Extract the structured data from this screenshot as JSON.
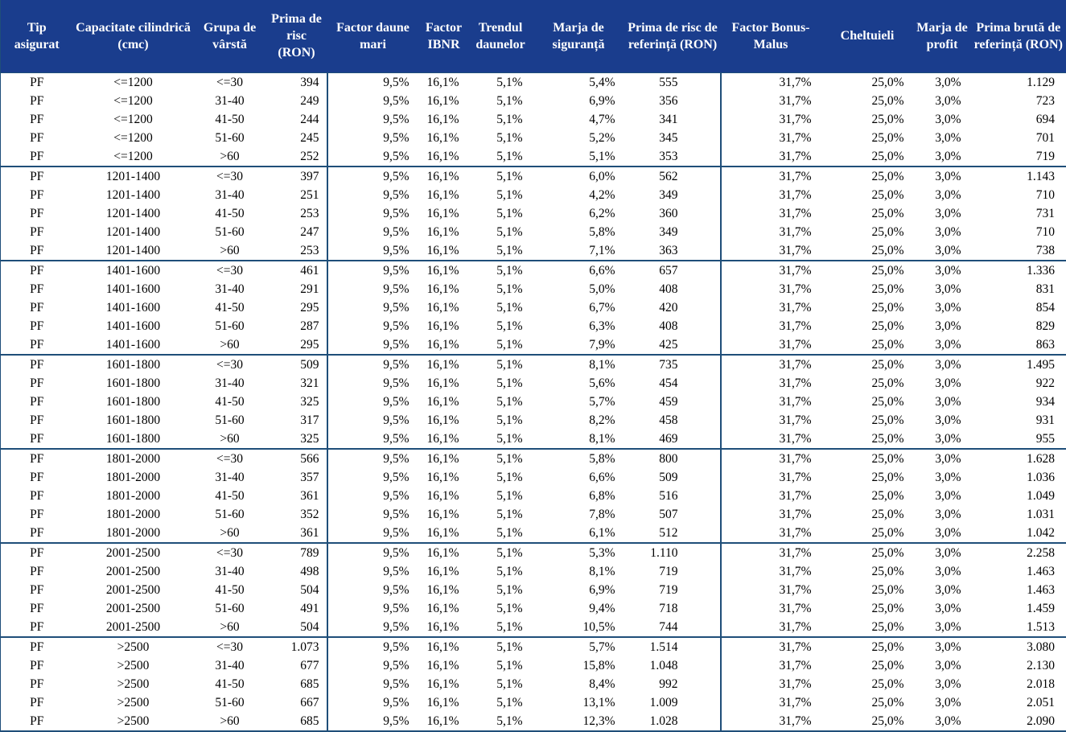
{
  "colors": {
    "header_background": "#1A3D8D",
    "header_text": "#FFFFFF",
    "grid_border": "#1F4E79",
    "body_text": "#000000",
    "body_background": "#FFFFFF"
  },
  "table": {
    "columns": [
      "Tip asigurat",
      "Capacitate cilindrică (cmc)",
      "Grupa de vârstă",
      "Prima de risc (RON)",
      "Factor daune mari",
      "Factor IBNR",
      "Trendul daunelor",
      "Marja de siguranță",
      "Prima de risc de referință (RON)",
      "Factor Bonus-Malus",
      "Cheltuieli",
      "Marja de profit",
      "Prima brută de referință (RON)"
    ],
    "column_keys": [
      "tip-asigurat",
      "capacitate-cilindrica",
      "grupa-varsta",
      "prima-risc",
      "factor-daune-mari",
      "factor-ibnr",
      "trendul-daunelor",
      "marja-siguranta",
      "prima-risc-referinta",
      "factor-bonus-malus",
      "cheltuieli",
      "marja-profit",
      "prima-bruta-referinta"
    ],
    "groups": [
      {
        "capacity": "<=1200",
        "rows": [
          [
            "PF",
            "<=1200",
            "<=30",
            "394",
            "9,5%",
            "16,1%",
            "5,1%",
            "5,4%",
            "555",
            "31,7%",
            "25,0%",
            "3,0%",
            "1.129"
          ],
          [
            "PF",
            "<=1200",
            "31-40",
            "249",
            "9,5%",
            "16,1%",
            "5,1%",
            "6,9%",
            "356",
            "31,7%",
            "25,0%",
            "3,0%",
            "723"
          ],
          [
            "PF",
            "<=1200",
            "41-50",
            "244",
            "9,5%",
            "16,1%",
            "5,1%",
            "4,7%",
            "341",
            "31,7%",
            "25,0%",
            "3,0%",
            "694"
          ],
          [
            "PF",
            "<=1200",
            "51-60",
            "245",
            "9,5%",
            "16,1%",
            "5,1%",
            "5,2%",
            "345",
            "31,7%",
            "25,0%",
            "3,0%",
            "701"
          ],
          [
            "PF",
            "<=1200",
            ">60",
            "252",
            "9,5%",
            "16,1%",
            "5,1%",
            "5,1%",
            "353",
            "31,7%",
            "25,0%",
            "3,0%",
            "719"
          ]
        ]
      },
      {
        "capacity": "1201-1400",
        "rows": [
          [
            "PF",
            "1201-1400",
            "<=30",
            "397",
            "9,5%",
            "16,1%",
            "5,1%",
            "6,0%",
            "562",
            "31,7%",
            "25,0%",
            "3,0%",
            "1.143"
          ],
          [
            "PF",
            "1201-1400",
            "31-40",
            "251",
            "9,5%",
            "16,1%",
            "5,1%",
            "4,2%",
            "349",
            "31,7%",
            "25,0%",
            "3,0%",
            "710"
          ],
          [
            "PF",
            "1201-1400",
            "41-50",
            "253",
            "9,5%",
            "16,1%",
            "5,1%",
            "6,2%",
            "360",
            "31,7%",
            "25,0%",
            "3,0%",
            "731"
          ],
          [
            "PF",
            "1201-1400",
            "51-60",
            "247",
            "9,5%",
            "16,1%",
            "5,1%",
            "5,8%",
            "349",
            "31,7%",
            "25,0%",
            "3,0%",
            "710"
          ],
          [
            "PF",
            "1201-1400",
            ">60",
            "253",
            "9,5%",
            "16,1%",
            "5,1%",
            "7,1%",
            "363",
            "31,7%",
            "25,0%",
            "3,0%",
            "738"
          ]
        ]
      },
      {
        "capacity": "1401-1600",
        "rows": [
          [
            "PF",
            "1401-1600",
            "<=30",
            "461",
            "9,5%",
            "16,1%",
            "5,1%",
            "6,6%",
            "657",
            "31,7%",
            "25,0%",
            "3,0%",
            "1.336"
          ],
          [
            "PF",
            "1401-1600",
            "31-40",
            "291",
            "9,5%",
            "16,1%",
            "5,1%",
            "5,0%",
            "408",
            "31,7%",
            "25,0%",
            "3,0%",
            "831"
          ],
          [
            "PF",
            "1401-1600",
            "41-50",
            "295",
            "9,5%",
            "16,1%",
            "5,1%",
            "6,7%",
            "420",
            "31,7%",
            "25,0%",
            "3,0%",
            "854"
          ],
          [
            "PF",
            "1401-1600",
            "51-60",
            "287",
            "9,5%",
            "16,1%",
            "5,1%",
            "6,3%",
            "408",
            "31,7%",
            "25,0%",
            "3,0%",
            "829"
          ],
          [
            "PF",
            "1401-1600",
            ">60",
            "295",
            "9,5%",
            "16,1%",
            "5,1%",
            "7,9%",
            "425",
            "31,7%",
            "25,0%",
            "3,0%",
            "863"
          ]
        ]
      },
      {
        "capacity": "1601-1800",
        "rows": [
          [
            "PF",
            "1601-1800",
            "<=30",
            "509",
            "9,5%",
            "16,1%",
            "5,1%",
            "8,1%",
            "735",
            "31,7%",
            "25,0%",
            "3,0%",
            "1.495"
          ],
          [
            "PF",
            "1601-1800",
            "31-40",
            "321",
            "9,5%",
            "16,1%",
            "5,1%",
            "5,6%",
            "454",
            "31,7%",
            "25,0%",
            "3,0%",
            "922"
          ],
          [
            "PF",
            "1601-1800",
            "41-50",
            "325",
            "9,5%",
            "16,1%",
            "5,1%",
            "5,7%",
            "459",
            "31,7%",
            "25,0%",
            "3,0%",
            "934"
          ],
          [
            "PF",
            "1601-1800",
            "51-60",
            "317",
            "9,5%",
            "16,1%",
            "5,1%",
            "8,2%",
            "458",
            "31,7%",
            "25,0%",
            "3,0%",
            "931"
          ],
          [
            "PF",
            "1601-1800",
            ">60",
            "325",
            "9,5%",
            "16,1%",
            "5,1%",
            "8,1%",
            "469",
            "31,7%",
            "25,0%",
            "3,0%",
            "955"
          ]
        ]
      },
      {
        "capacity": "1801-2000",
        "rows": [
          [
            "PF",
            "1801-2000",
            "<=30",
            "566",
            "9,5%",
            "16,1%",
            "5,1%",
            "5,8%",
            "800",
            "31,7%",
            "25,0%",
            "3,0%",
            "1.628"
          ],
          [
            "PF",
            "1801-2000",
            "31-40",
            "357",
            "9,5%",
            "16,1%",
            "5,1%",
            "6,6%",
            "509",
            "31,7%",
            "25,0%",
            "3,0%",
            "1.036"
          ],
          [
            "PF",
            "1801-2000",
            "41-50",
            "361",
            "9,5%",
            "16,1%",
            "5,1%",
            "6,8%",
            "516",
            "31,7%",
            "25,0%",
            "3,0%",
            "1.049"
          ],
          [
            "PF",
            "1801-2000",
            "51-60",
            "352",
            "9,5%",
            "16,1%",
            "5,1%",
            "7,8%",
            "507",
            "31,7%",
            "25,0%",
            "3,0%",
            "1.031"
          ],
          [
            "PF",
            "1801-2000",
            ">60",
            "361",
            "9,5%",
            "16,1%",
            "5,1%",
            "6,1%",
            "512",
            "31,7%",
            "25,0%",
            "3,0%",
            "1.042"
          ]
        ]
      },
      {
        "capacity": "2001-2500",
        "rows": [
          [
            "PF",
            "2001-2500",
            "<=30",
            "789",
            "9,5%",
            "16,1%",
            "5,1%",
            "5,3%",
            "1.110",
            "31,7%",
            "25,0%",
            "3,0%",
            "2.258"
          ],
          [
            "PF",
            "2001-2500",
            "31-40",
            "498",
            "9,5%",
            "16,1%",
            "5,1%",
            "8,1%",
            "719",
            "31,7%",
            "25,0%",
            "3,0%",
            "1.463"
          ],
          [
            "PF",
            "2001-2500",
            "41-50",
            "504",
            "9,5%",
            "16,1%",
            "5,1%",
            "6,9%",
            "719",
            "31,7%",
            "25,0%",
            "3,0%",
            "1.463"
          ],
          [
            "PF",
            "2001-2500",
            "51-60",
            "491",
            "9,5%",
            "16,1%",
            "5,1%",
            "9,4%",
            "718",
            "31,7%",
            "25,0%",
            "3,0%",
            "1.459"
          ],
          [
            "PF",
            "2001-2500",
            ">60",
            "504",
            "9,5%",
            "16,1%",
            "5,1%",
            "10,5%",
            "744",
            "31,7%",
            "25,0%",
            "3,0%",
            "1.513"
          ]
        ]
      },
      {
        "capacity": ">2500",
        "rows": [
          [
            "PF",
            ">2500",
            "<=30",
            "1.073",
            "9,5%",
            "16,1%",
            "5,1%",
            "5,7%",
            "1.514",
            "31,7%",
            "25,0%",
            "3,0%",
            "3.080"
          ],
          [
            "PF",
            ">2500",
            "31-40",
            "677",
            "9,5%",
            "16,1%",
            "5,1%",
            "15,8%",
            "1.048",
            "31,7%",
            "25,0%",
            "3,0%",
            "2.130"
          ],
          [
            "PF",
            ">2500",
            "41-50",
            "685",
            "9,5%",
            "16,1%",
            "5,1%",
            "8,4%",
            "992",
            "31,7%",
            "25,0%",
            "3,0%",
            "2.018"
          ],
          [
            "PF",
            ">2500",
            "51-60",
            "667",
            "9,5%",
            "16,1%",
            "5,1%",
            "13,1%",
            "1.009",
            "31,7%",
            "25,0%",
            "3,0%",
            "2.051"
          ],
          [
            "PF",
            ">2500",
            ">60",
            "685",
            "9,5%",
            "16,1%",
            "5,1%",
            "12,3%",
            "1.028",
            "31,7%",
            "25,0%",
            "3,0%",
            "2.090"
          ]
        ]
      }
    ]
  }
}
